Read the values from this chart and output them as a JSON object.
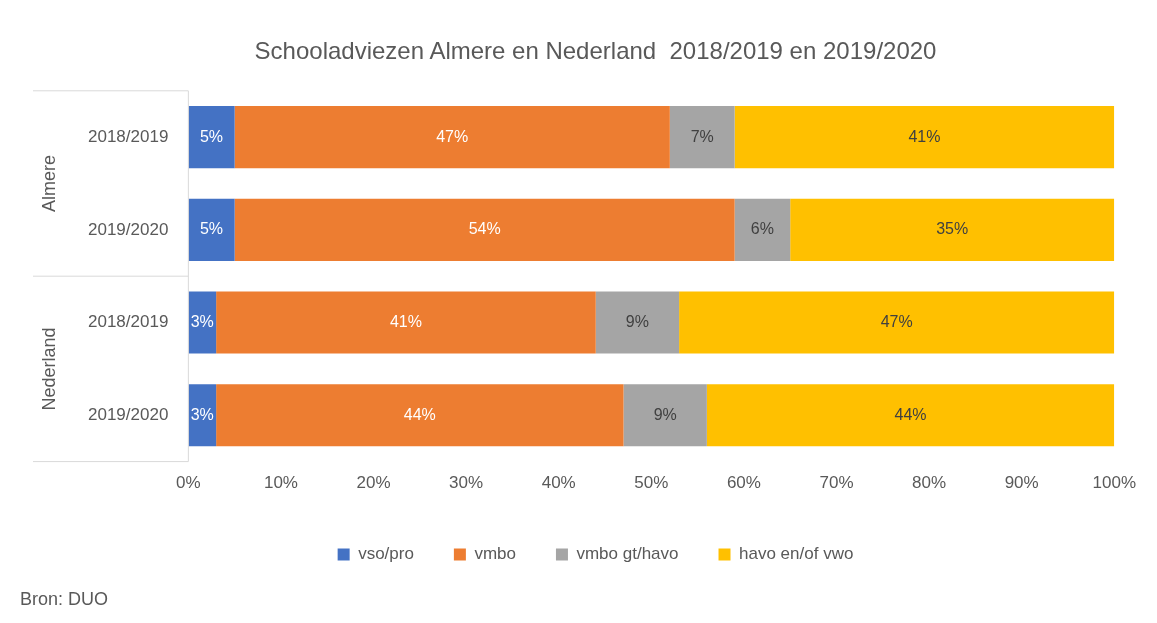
{
  "chart_data": {
    "type": "bar",
    "orientation": "horizontal",
    "stacked": true,
    "title": "Schooladviezen Almere en Nederland  2018/2019 en 2019/2020",
    "categories": [
      "2018/2019",
      "2019/2020",
      "2018/2019",
      "2019/2020"
    ],
    "series": [
      {
        "name": "vso/pro",
        "color": "#4472c4",
        "values": [
          5,
          5,
          3,
          3
        ],
        "value_labels": [
          "5%",
          "5%",
          "3%",
          "3%"
        ]
      },
      {
        "name": "vmbo",
        "color": "#ed7d31",
        "values": [
          47,
          54,
          41,
          44
        ],
        "value_labels": [
          "47%",
          "54%",
          "41%",
          "44%"
        ]
      },
      {
        "name": "vmbo gt/havo",
        "color": "#a5a5a5",
        "values": [
          7,
          6,
          9,
          9
        ],
        "value_labels": [
          "7%",
          "6%",
          "9%",
          "9%"
        ]
      },
      {
        "name": "havo en/of vwo",
        "color": "#ffc000",
        "values": [
          41,
          35,
          47,
          44
        ],
        "value_labels": [
          "41%",
          "35%",
          "47%",
          "44%"
        ]
      }
    ],
    "xlim": [
      0,
      100
    ],
    "xticks": [
      {
        "value": 0,
        "label": "0%"
      },
      {
        "value": 10,
        "label": "10%"
      },
      {
        "value": 20,
        "label": "20%"
      },
      {
        "value": 30,
        "label": "30%"
      },
      {
        "value": 40,
        "label": "40%"
      },
      {
        "value": 50,
        "label": "50%"
      },
      {
        "value": 60,
        "label": "60%"
      },
      {
        "value": 70,
        "label": "70%"
      },
      {
        "value": 80,
        "label": "80%"
      },
      {
        "value": 90,
        "label": "90%"
      },
      {
        "value": 100,
        "label": "100%"
      }
    ],
    "legend": "bottom",
    "grid": false,
    "annotations": [
      "Almere",
      "Nederland",
      "Bron: DUO"
    ]
  }
}
